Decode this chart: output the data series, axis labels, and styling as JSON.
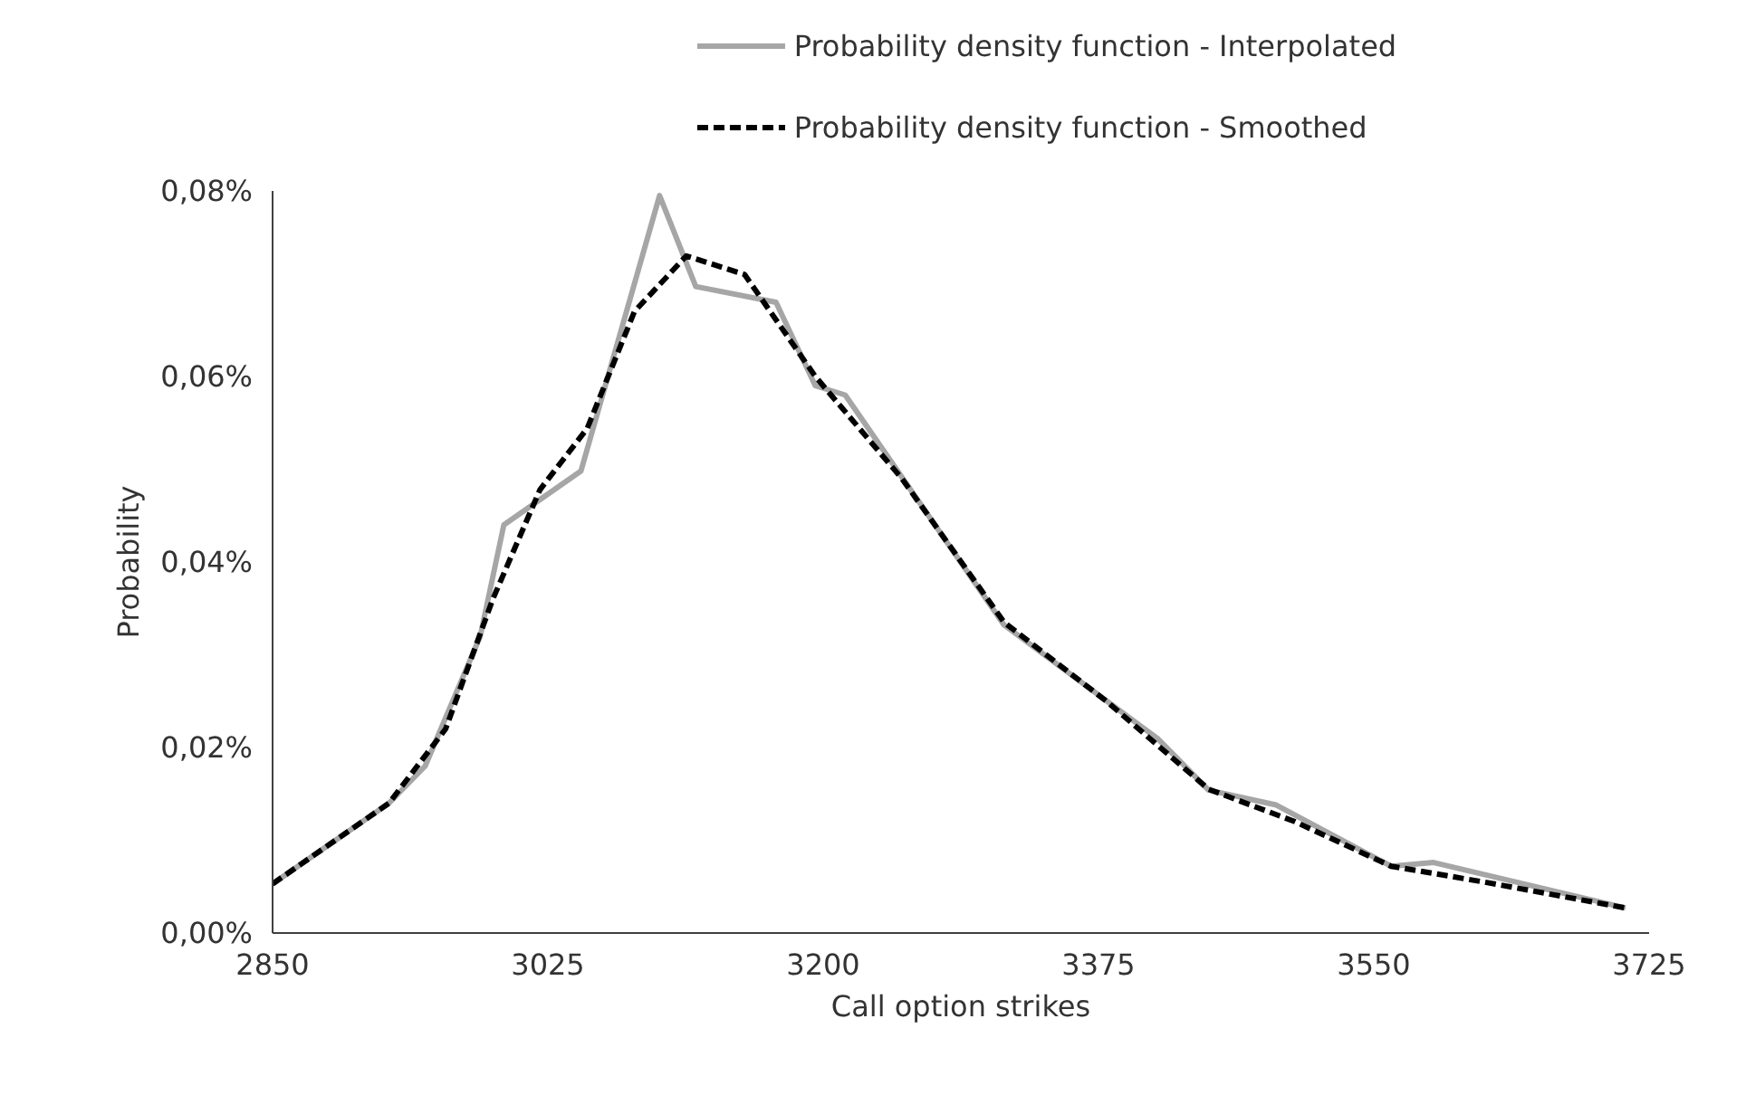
{
  "chart_data": {
    "type": "line",
    "xlabel": "Call option strikes",
    "ylabel": "Probability",
    "xlim": [
      2850,
      3725
    ],
    "xticks": [
      2850,
      3025,
      3200,
      3375,
      3550,
      3725
    ],
    "ylim": [
      0,
      0.08
    ],
    "yticks": [
      {
        "value": 0,
        "label": "0,00%"
      },
      {
        "value": 0.02,
        "label": "0,02%"
      },
      {
        "value": 0.04,
        "label": "0,04%"
      },
      {
        "value": 0.06,
        "label": "0,06%"
      },
      {
        "value": 0.08,
        "label": "0,08%"
      }
    ],
    "grid": false,
    "legend": "top",
    "marker": "none",
    "series": [
      {
        "name": "Probability density function - Interpolated",
        "color": "#a6a6a6",
        "line_style": "solid",
        "x": [
          2850,
          2924,
          2947,
          2982,
          2997,
          3046,
          3096,
          3119,
          3170,
          3195,
          3214,
          3315,
          3413,
          3445,
          3488,
          3561,
          3588,
          3710
        ],
        "values": [
          0.0053,
          0.014,
          0.018,
          0.032,
          0.044,
          0.0498,
          0.0795,
          0.0697,
          0.068,
          0.059,
          0.058,
          0.0332,
          0.0209,
          0.0154,
          0.0138,
          0.0072,
          0.0076,
          0.0027
        ]
      },
      {
        "name": "Probability density function - Smoothed",
        "color": "#000000",
        "line_style": "dashed",
        "x": [
          2850,
          2924,
          2960,
          2990,
          3020,
          3050,
          3080,
          3113,
          3150,
          3195,
          3250,
          3315,
          3380,
          3445,
          3500,
          3561,
          3620,
          3710
        ],
        "values": [
          0.0053,
          0.014,
          0.022,
          0.036,
          0.0478,
          0.0544,
          0.067,
          0.073,
          0.071,
          0.06,
          0.049,
          0.0335,
          0.025,
          0.0155,
          0.012,
          0.0072,
          0.0055,
          0.0027
        ]
      }
    ]
  }
}
